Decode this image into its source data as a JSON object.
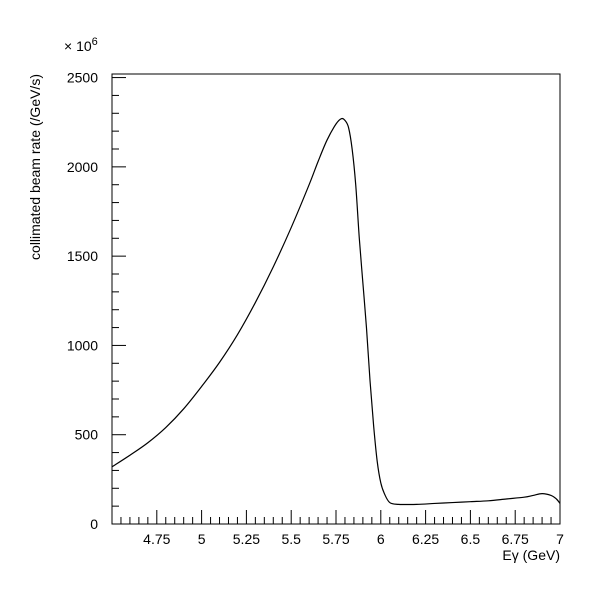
{
  "chart_data": {
    "type": "line",
    "title": "",
    "xlabel": "Eγ (GeV)",
    "ylabel": "collimated beam rate (/GeV/s)",
    "y_multiplier": "× 10",
    "y_multiplier_exp": "6",
    "xlim": [
      4.5,
      7.0
    ],
    "ylim": [
      0,
      2520
    ],
    "grid": false,
    "x_major_ticks": [
      4.75,
      5,
      5.25,
      5.5,
      5.75,
      6,
      6.25,
      6.5,
      6.75,
      7
    ],
    "x_tick_labels": [
      "4.75",
      "5",
      "5.25",
      "5.5",
      "5.75",
      "6",
      "6.25",
      "6.5",
      "6.75",
      "7"
    ],
    "y_major_ticks": [
      0,
      500,
      1000,
      1500,
      2000,
      2500
    ],
    "y_tick_labels": [
      "0",
      "500",
      "1000",
      "1500",
      "2000",
      "2500"
    ],
    "series": [
      {
        "color": "#000000",
        "x": [
          4.5,
          4.6,
          4.7,
          4.8,
          4.9,
          5.0,
          5.1,
          5.2,
          5.3,
          5.4,
          5.5,
          5.6,
          5.65,
          5.7,
          5.75,
          5.78,
          5.8,
          5.82,
          5.84,
          5.86,
          5.88,
          5.9,
          5.92,
          5.94,
          5.96,
          5.98,
          6.0,
          6.02,
          6.05,
          6.1,
          6.2,
          6.3,
          6.4,
          6.5,
          6.6,
          6.7,
          6.8,
          6.85,
          6.9,
          6.95,
          6.98,
          7.0
        ],
        "y": [
          320,
          385,
          455,
          540,
          645,
          770,
          905,
          1060,
          1240,
          1440,
          1660,
          1900,
          2030,
          2150,
          2240,
          2270,
          2260,
          2220,
          2100,
          1900,
          1600,
          1350,
          1100,
          800,
          550,
          350,
          230,
          170,
          120,
          110,
          110,
          115,
          120,
          125,
          130,
          140,
          150,
          160,
          170,
          160,
          140,
          115
        ]
      }
    ]
  }
}
